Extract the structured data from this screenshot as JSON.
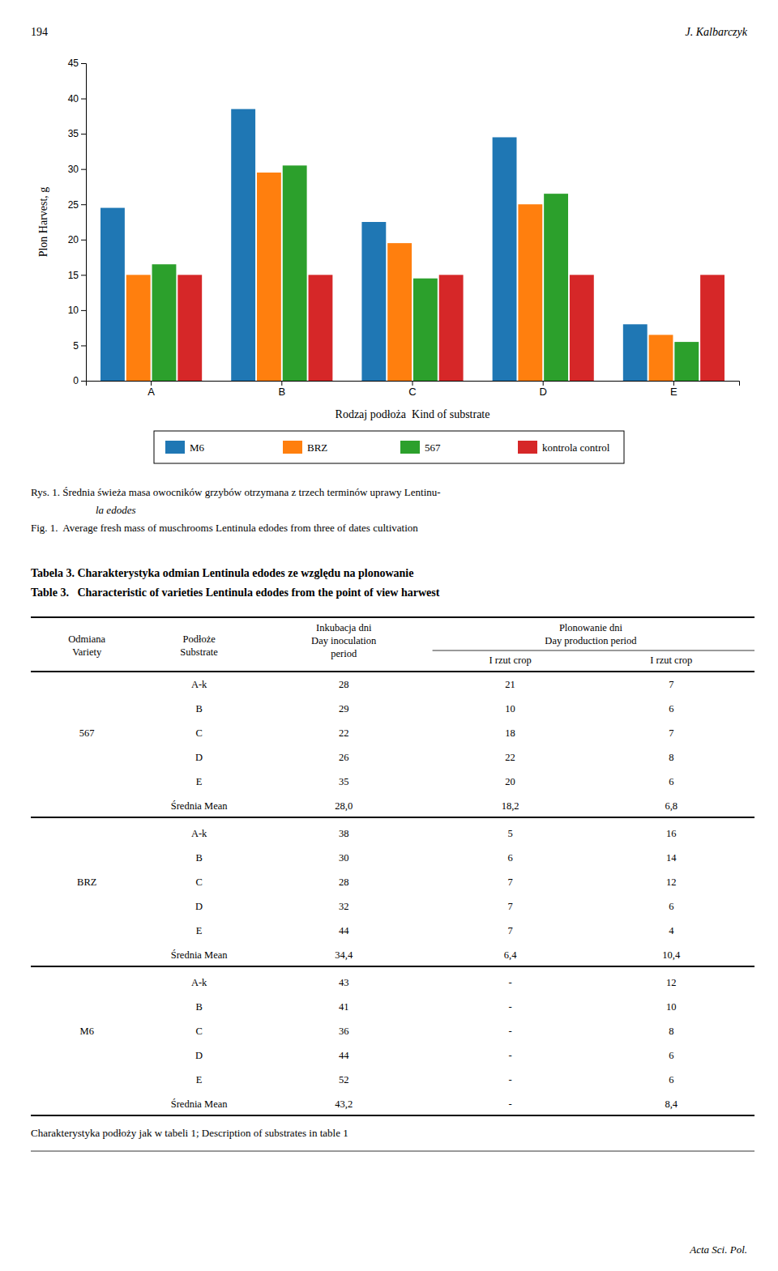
{
  "page_header_left": "194",
  "page_header_right": "J. Kalbarczyk",
  "chart_data": {
    "type": "bar",
    "categories": [
      "A",
      "B",
      "C",
      "D",
      "E"
    ],
    "series": [
      {
        "name": "M6",
        "values": [
          24.5,
          38.5,
          22.5,
          34.5,
          8.0
        ]
      },
      {
        "name": "BRZ",
        "values": [
          15.0,
          29.5,
          19.5,
          25.0,
          6.5
        ]
      },
      {
        "name": "567",
        "values": [
          16.5,
          30.5,
          14.5,
          26.5,
          5.5
        ]
      },
      {
        "name": "kontrola control",
        "values": [
          15.0,
          15.0,
          15.0,
          15.0,
          15.0
        ]
      }
    ],
    "xlabel": "Rodzaj podłoża  Kind of substrate",
    "ylabel": "Plon Harvest, g",
    "ylim": [
      0,
      45
    ],
    "yticks": [
      0,
      5,
      10,
      15,
      20,
      25,
      30,
      35,
      40,
      45
    ],
    "grid": false,
    "legend": "bottom"
  },
  "captions": [
    "Rys. 1. Średnia świeża masa owocników grzybów otrzymana z trzech terminów uprawy Lentinu-",
    "la edodes",
    "Fig. 1.  Average fresh mass of muschrooms Lentinula edodes from three of dates cultivation"
  ],
  "table_titles": [
    "Tabela 3. Charakterystyka odmian Lentinula edodes ze względu na plonowanie",
    "Table 3.   Characteristic of varieties Lentinula edodes from the point of view harwest"
  ],
  "table": {
    "columns": [
      [
        "Odmiana",
        "Variety"
      ],
      [
        "Podłoże",
        "Substrate"
      ],
      [
        "Inkubacja dni",
        "Day inoculation",
        "period"
      ]
    ],
    "group_header": [
      "Plonowanie dni",
      "Day production period"
    ],
    "subcolumns": [
      "I rzut crop",
      "I rzut crop"
    ],
    "mean_label": "Średnia Mean",
    "groups": [
      {
        "variety": "567",
        "rows": [
          [
            "A-k",
            "28",
            "21",
            "7"
          ],
          [
            "B",
            "29",
            "10",
            "6"
          ],
          [
            "C",
            "22",
            "18",
            "7"
          ],
          [
            "D",
            "26",
            "22",
            "8"
          ],
          [
            "E",
            "35",
            "20",
            "6"
          ]
        ],
        "mean": [
          "28,0",
          "18,2",
          "6,8"
        ]
      },
      {
        "variety": "BRZ",
        "rows": [
          [
            "A-k",
            "38",
            "5",
            "16"
          ],
          [
            "B",
            "30",
            "6",
            "14"
          ],
          [
            "C",
            "28",
            "7",
            "12"
          ],
          [
            "D",
            "32",
            "7",
            "6"
          ],
          [
            "E",
            "44",
            "7",
            "4"
          ]
        ],
        "mean": [
          "34,4",
          "6,4",
          "10,4"
        ]
      },
      {
        "variety": "M6",
        "rows": [
          [
            "A-k",
            "43",
            "-",
            "12"
          ],
          [
            "B",
            "41",
            "-",
            "10"
          ],
          [
            "C",
            "36",
            "-",
            "8"
          ],
          [
            "D",
            "44",
            "-",
            "6"
          ],
          [
            "E",
            "52",
            "-",
            "6"
          ]
        ],
        "mean": [
          "43,2",
          "-",
          "8,4"
        ]
      }
    ]
  },
  "footer_note": "Charakterystyka podłoży jak w tabeli 1; Description of substrates in table 1",
  "page_footer": "Acta Sci. Pol."
}
